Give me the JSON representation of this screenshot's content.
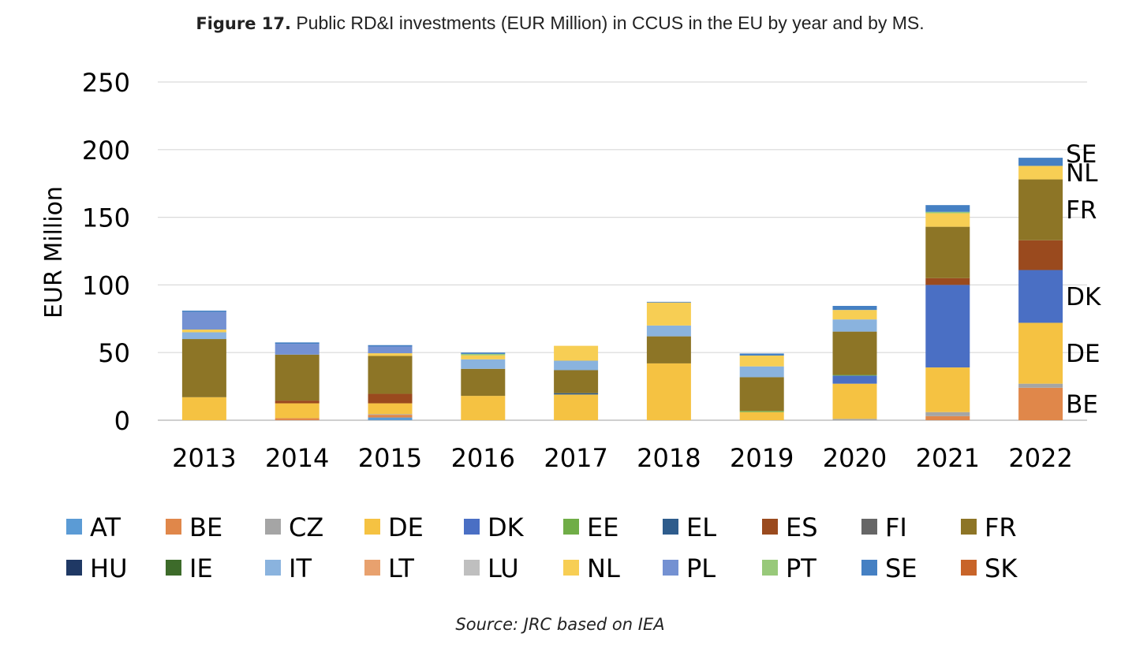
{
  "figure": {
    "label": "Figure 17.",
    "caption": "Public RD&I investments (EUR Million) in CCUS in the EU by year and by MS.",
    "source": "Source: JRC based on IEA"
  },
  "chart_data": {
    "type": "bar",
    "stacked": true,
    "ylabel": "EUR Million",
    "ylim": [
      0,
      250
    ],
    "yticks": [
      0,
      50,
      100,
      150,
      200,
      250
    ],
    "grid": true,
    "legend_position": "bottom",
    "categories": [
      "2013",
      "2014",
      "2015",
      "2016",
      "2017",
      "2018",
      "2019",
      "2020",
      "2021",
      "2022"
    ],
    "series": [
      {
        "name": "AT",
        "color": "#5B9BD5",
        "values": [
          0,
          0,
          2,
          0,
          0,
          0,
          0,
          0,
          0,
          0
        ]
      },
      {
        "name": "BE",
        "color": "#E0874A",
        "values": [
          0,
          1.5,
          2,
          0,
          0,
          0,
          0,
          0,
          3,
          24
        ]
      },
      {
        "name": "CZ",
        "color": "#A5A5A5",
        "values": [
          0,
          0,
          0.5,
          0,
          0,
          0,
          0,
          1,
          3,
          3
        ]
      },
      {
        "name": "DE",
        "color": "#F5C242",
        "values": [
          17,
          11,
          8,
          18,
          19,
          42,
          6,
          26,
          33,
          45
        ]
      },
      {
        "name": "DK",
        "color": "#4A6FC4",
        "values": [
          0,
          0,
          0,
          0,
          0,
          0,
          0,
          6,
          61,
          39
        ]
      },
      {
        "name": "EE",
        "color": "#70AD47",
        "values": [
          0,
          0,
          0,
          0,
          0,
          0,
          0.8,
          0.5,
          0,
          0
        ]
      },
      {
        "name": "EL",
        "color": "#2E5C8C",
        "values": [
          0,
          0,
          0,
          0,
          1,
          0,
          0,
          0,
          0,
          0
        ]
      },
      {
        "name": "ES",
        "color": "#9A4A1E",
        "values": [
          0,
          2,
          7,
          0,
          0,
          0,
          0,
          0,
          5,
          22
        ]
      },
      {
        "name": "FI",
        "color": "#666666",
        "values": [
          0,
          0,
          0,
          0,
          0,
          0,
          0,
          0,
          0,
          0
        ]
      },
      {
        "name": "FR",
        "color": "#8D7526",
        "values": [
          43,
          34,
          28,
          20,
          17,
          20,
          25,
          32,
          38,
          45
        ]
      },
      {
        "name": "HU",
        "color": "#1F3864",
        "values": [
          0,
          0,
          0,
          0,
          0,
          0,
          0,
          0,
          0,
          0
        ]
      },
      {
        "name": "IE",
        "color": "#3D6B2A",
        "values": [
          0,
          0,
          0,
          0,
          0,
          0,
          0,
          0,
          0,
          0
        ]
      },
      {
        "name": "IT",
        "color": "#8AB3DE",
        "values": [
          5,
          0,
          0,
          7,
          7,
          8,
          8,
          9,
          0,
          0
        ]
      },
      {
        "name": "LT",
        "color": "#E8A16E",
        "values": [
          0,
          0,
          0,
          0,
          0,
          0,
          0,
          0,
          0,
          0
        ]
      },
      {
        "name": "LU",
        "color": "#BFBFBF",
        "values": [
          0,
          0,
          0,
          0,
          0,
          0,
          0,
          0,
          0,
          0
        ]
      },
      {
        "name": "NL",
        "color": "#F7CE54",
        "values": [
          2,
          0,
          2,
          3,
          11,
          17,
          8,
          7,
          10,
          10
        ]
      },
      {
        "name": "PL",
        "color": "#7491D2",
        "values": [
          13,
          8,
          5,
          0,
          0,
          0,
          0,
          0,
          0,
          0
        ]
      },
      {
        "name": "PT",
        "color": "#98C97A",
        "values": [
          0,
          0,
          0,
          1,
          0,
          0,
          0,
          0,
          1,
          0
        ]
      },
      {
        "name": "SE",
        "color": "#4580C3",
        "values": [
          1,
          1,
          1,
          1,
          0,
          0.5,
          1.5,
          3,
          5,
          6
        ]
      },
      {
        "name": "SK",
        "color": "#C86429",
        "values": [
          0,
          0,
          0,
          0,
          0,
          0,
          0,
          0,
          0,
          0
        ]
      }
    ],
    "annotations": [
      {
        "text": "SE",
        "series": "SE",
        "category": "2022"
      },
      {
        "text": "NL",
        "series": "NL",
        "category": "2022"
      },
      {
        "text": "FR",
        "series": "FR",
        "category": "2022"
      },
      {
        "text": "DK",
        "series": "DK",
        "category": "2022"
      },
      {
        "text": "DE",
        "series": "DE",
        "category": "2022"
      },
      {
        "text": "BE",
        "series": "BE",
        "category": "2022"
      }
    ]
  }
}
